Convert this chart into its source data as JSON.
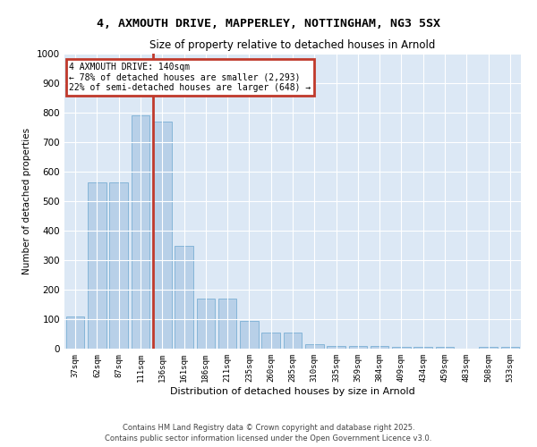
{
  "title_line1": "4, AXMOUTH DRIVE, MAPPERLEY, NOTTINGHAM, NG3 5SX",
  "title_line2": "Size of property relative to detached houses in Arnold",
  "xlabel": "Distribution of detached houses by size in Arnold",
  "ylabel": "Number of detached properties",
  "categories": [
    "37sqm",
    "62sqm",
    "87sqm",
    "111sqm",
    "136sqm",
    "161sqm",
    "186sqm",
    "211sqm",
    "235sqm",
    "260sqm",
    "285sqm",
    "310sqm",
    "335sqm",
    "359sqm",
    "384sqm",
    "409sqm",
    "434sqm",
    "459sqm",
    "483sqm",
    "508sqm",
    "533sqm"
  ],
  "values": [
    110,
    565,
    565,
    790,
    770,
    350,
    170,
    170,
    95,
    55,
    55,
    15,
    10,
    10,
    10,
    5,
    5,
    5,
    0,
    5,
    5
  ],
  "highlight_index": 4,
  "bar_color": "#b8d0e8",
  "bar_edge_color": "#7bafd4",
  "vline_color": "#c0392b",
  "annotation_title": "4 AXMOUTH DRIVE: 140sqm",
  "annotation_line1": "← 78% of detached houses are smaller (2,293)",
  "annotation_line2": "22% of semi-detached houses are larger (648) →",
  "annotation_box_color": "#c0392b",
  "ylim": [
    0,
    1000
  ],
  "yticks": [
    0,
    100,
    200,
    300,
    400,
    500,
    600,
    700,
    800,
    900,
    1000
  ],
  "bg_color": "#dce8f5",
  "footer1": "Contains HM Land Registry data © Crown copyright and database right 2025.",
  "footer2": "Contains public sector information licensed under the Open Government Licence v3.0."
}
